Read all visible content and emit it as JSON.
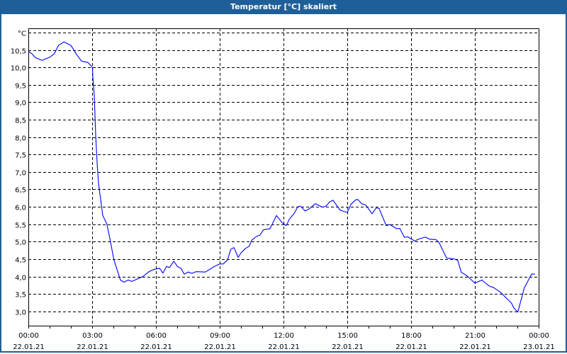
{
  "window": {
    "title": "Temperatur [°C] skaliert"
  },
  "colors": {
    "titlebar": "#1f5f99",
    "series": "#0000ff",
    "grid": "#000000"
  },
  "chart_data": {
    "type": "line",
    "title": "Temperatur [°C] skaliert",
    "ylabel": "°C",
    "xlabel": "",
    "ylim": [
      2.59,
      11.12
    ],
    "xlim_hours": [
      0,
      24
    ],
    "yticks": [
      3.0,
      3.5,
      4.0,
      4.5,
      5.0,
      5.5,
      6.0,
      6.5,
      7.0,
      7.5,
      8.0,
      8.5,
      9.0,
      9.5,
      10.0,
      10.5
    ],
    "ytick_labels": [
      "3,0",
      "3,5",
      "4,0",
      "4,5",
      "5,0",
      "5,5",
      "6,0",
      "6,5",
      "7,0",
      "7,5",
      "8,0",
      "8,5",
      "9,0",
      "9,5",
      "10,0",
      "10,5"
    ],
    "yunit_tick": 11.0,
    "xticks_hours": [
      0,
      3,
      6,
      9,
      12,
      15,
      18,
      21,
      24
    ],
    "xtick_labels": [
      [
        "00:00",
        "22.01.21"
      ],
      [
        "03:00",
        "22.01.21"
      ],
      [
        "06:00",
        "22.01.21"
      ],
      [
        "09:00",
        "22.01.21"
      ],
      [
        "12:00",
        "22.01.21"
      ],
      [
        "15:00",
        "22.01.21"
      ],
      [
        "18:00",
        "22.01.21"
      ],
      [
        "21:00",
        "22.01.21"
      ],
      [
        "00:00",
        "23.01.21"
      ]
    ],
    "grid": true,
    "series": [
      {
        "name": "Temperatur",
        "points": [
          [
            0.02,
            10.45
          ],
          [
            0.17,
            10.39
          ],
          [
            0.33,
            10.28
          ],
          [
            0.64,
            10.2
          ],
          [
            1.0,
            10.29
          ],
          [
            1.22,
            10.39
          ],
          [
            1.42,
            10.63
          ],
          [
            1.67,
            10.73
          ],
          [
            2.0,
            10.63
          ],
          [
            2.28,
            10.36
          ],
          [
            2.5,
            10.18
          ],
          [
            2.8,
            10.14
          ],
          [
            2.94,
            10.05
          ],
          [
            3.02,
            9.99
          ],
          [
            3.03,
            9.75
          ],
          [
            3.1,
            9.2
          ],
          [
            3.17,
            8.0
          ],
          [
            3.24,
            7.2
          ],
          [
            3.3,
            6.67
          ],
          [
            3.39,
            6.26
          ],
          [
            3.5,
            5.75
          ],
          [
            3.69,
            5.51
          ],
          [
            3.83,
            5.1
          ],
          [
            4.02,
            4.49
          ],
          [
            4.33,
            3.9
          ],
          [
            4.5,
            3.84
          ],
          [
            4.7,
            3.9
          ],
          [
            4.86,
            3.86
          ],
          [
            5.39,
            4.0
          ],
          [
            5.67,
            4.14
          ],
          [
            5.89,
            4.2
          ],
          [
            6.17,
            4.24
          ],
          [
            6.33,
            4.1
          ],
          [
            6.5,
            4.29
          ],
          [
            6.64,
            4.26
          ],
          [
            6.84,
            4.44
          ],
          [
            7.02,
            4.28
          ],
          [
            7.17,
            4.24
          ],
          [
            7.33,
            4.07
          ],
          [
            7.52,
            4.13
          ],
          [
            7.69,
            4.09
          ],
          [
            7.89,
            4.14
          ],
          [
            8.33,
            4.13
          ],
          [
            8.72,
            4.28
          ],
          [
            9.0,
            4.36
          ],
          [
            9.17,
            4.36
          ],
          [
            9.37,
            4.48
          ],
          [
            9.52,
            4.78
          ],
          [
            9.67,
            4.83
          ],
          [
            9.87,
            4.55
          ],
          [
            10.0,
            4.68
          ],
          [
            10.22,
            4.81
          ],
          [
            10.39,
            4.87
          ],
          [
            10.5,
            5.04
          ],
          [
            10.72,
            5.15
          ],
          [
            10.89,
            5.19
          ],
          [
            11.06,
            5.34
          ],
          [
            11.36,
            5.37
          ],
          [
            11.67,
            5.75
          ],
          [
            11.94,
            5.54
          ],
          [
            12.13,
            5.46
          ],
          [
            12.28,
            5.65
          ],
          [
            12.5,
            5.81
          ],
          [
            12.67,
            6.0
          ],
          [
            12.8,
            6.02
          ],
          [
            13.02,
            5.88
          ],
          [
            13.22,
            5.95
          ],
          [
            13.5,
            6.09
          ],
          [
            13.83,
            5.99
          ],
          [
            14.0,
            6.02
          ],
          [
            14.17,
            6.14
          ],
          [
            14.33,
            6.19
          ],
          [
            14.5,
            6.04
          ],
          [
            14.67,
            5.9
          ],
          [
            15.0,
            5.84
          ],
          [
            15.17,
            6.07
          ],
          [
            15.39,
            6.2
          ],
          [
            15.5,
            6.21
          ],
          [
            15.67,
            6.09
          ],
          [
            15.87,
            6.05
          ],
          [
            16.17,
            5.8
          ],
          [
            16.36,
            5.97
          ],
          [
            16.5,
            5.95
          ],
          [
            16.83,
            5.46
          ],
          [
            17.0,
            5.49
          ],
          [
            17.33,
            5.37
          ],
          [
            17.47,
            5.38
          ],
          [
            17.69,
            5.12
          ],
          [
            17.83,
            5.14
          ],
          [
            18.17,
            5.02
          ],
          [
            18.39,
            5.08
          ],
          [
            18.67,
            5.13
          ],
          [
            18.87,
            5.07
          ],
          [
            19.17,
            5.06
          ],
          [
            19.31,
            4.98
          ],
          [
            19.67,
            4.53
          ],
          [
            20.0,
            4.51
          ],
          [
            20.2,
            4.46
          ],
          [
            20.36,
            4.12
          ],
          [
            20.61,
            4.03
          ],
          [
            21.0,
            3.81
          ],
          [
            21.33,
            3.9
          ],
          [
            21.67,
            3.73
          ],
          [
            21.89,
            3.68
          ],
          [
            22.22,
            3.54
          ],
          [
            22.5,
            3.37
          ],
          [
            22.72,
            3.24
          ],
          [
            22.83,
            3.1
          ],
          [
            23.02,
            2.98
          ],
          [
            23.33,
            3.68
          ],
          [
            23.67,
            4.07
          ],
          [
            23.83,
            4.07
          ]
        ]
      }
    ]
  }
}
